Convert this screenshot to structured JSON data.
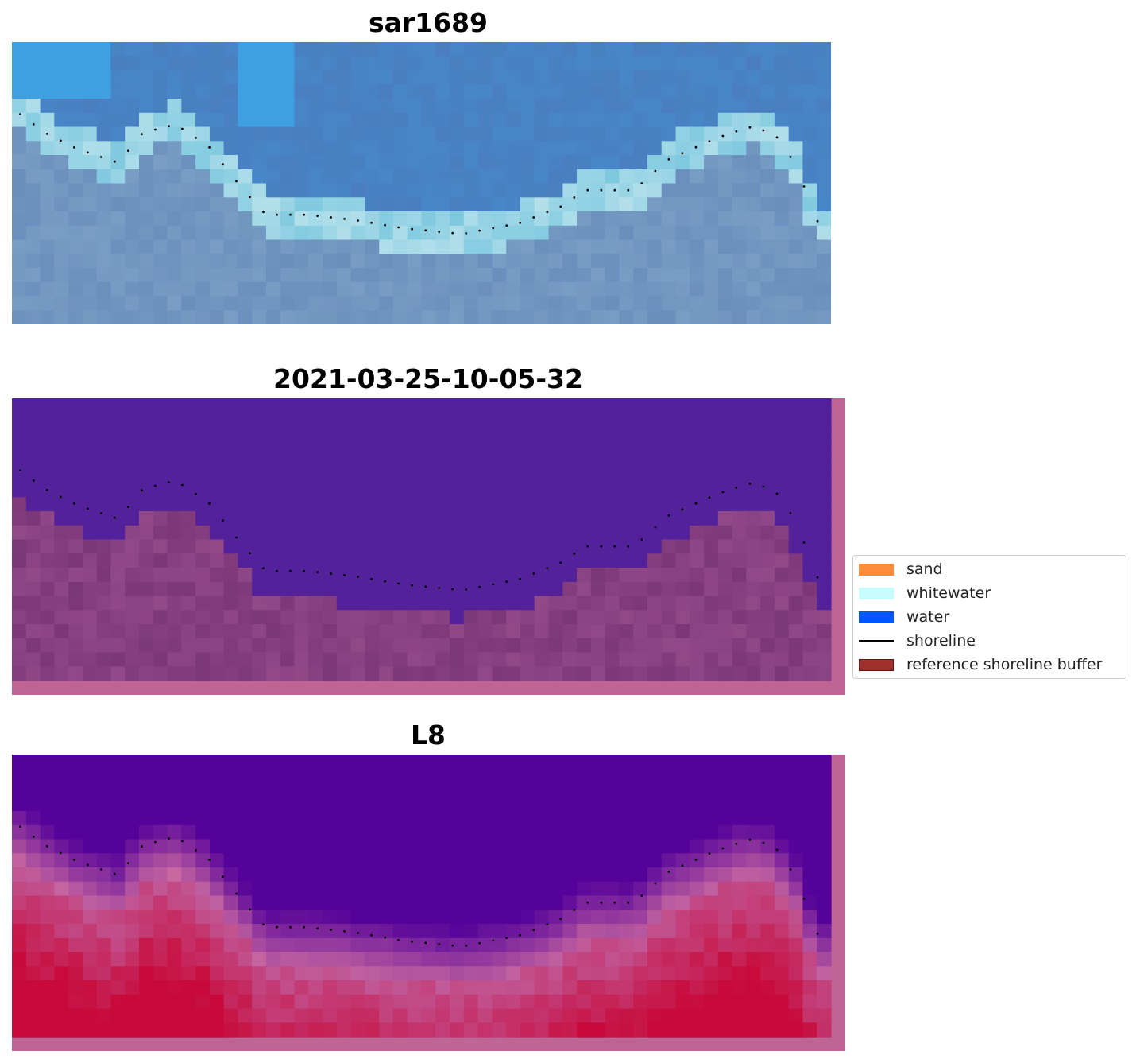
{
  "panels": [
    {
      "title": "sar1689",
      "kind": "rgb"
    },
    {
      "title": "2021-03-25-10-05-32",
      "kind": "classification"
    },
    {
      "title": "L8",
      "kind": "index"
    }
  ],
  "legend": {
    "items": [
      {
        "label": "sand",
        "color": "#ff8c3a",
        "shape": "patch"
      },
      {
        "label": "whitewater",
        "color": "#c8fdff",
        "shape": "patch"
      },
      {
        "label": "water",
        "color": "#0055ff",
        "shape": "patch"
      },
      {
        "label": "shoreline",
        "color": "#000000",
        "shape": "line"
      },
      {
        "label": "reference shoreline buffer",
        "color": "#9e2f2c",
        "shape": "patch"
      }
    ]
  },
  "colors": {
    "water_class": "#53229a",
    "land_class": "#7c3778",
    "buffer_mask": "#c06496",
    "index_low": "#54029a",
    "index_high": "#c80a3a"
  }
}
